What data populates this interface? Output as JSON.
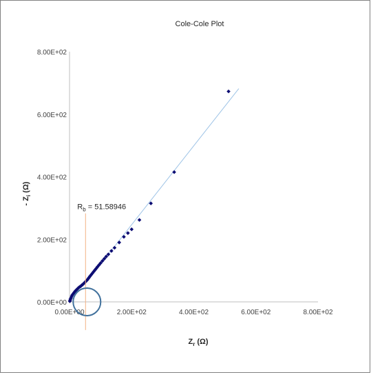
{
  "chart_data": {
    "type": "scatter",
    "title": "Cole-Cole Plot",
    "xlabel": {
      "main": "Z",
      "sub": "r",
      "unit": " (Ω)"
    },
    "ylabel": {
      "main": "- Z",
      "sub": "i",
      "unit": " (Ω)"
    },
    "xlim": [
      0,
      800
    ],
    "ylim": [
      0,
      800
    ],
    "xticks": [
      0,
      200,
      400,
      600,
      800
    ],
    "yticks": [
      0,
      200,
      400,
      600,
      800
    ],
    "xtick_labels": [
      "0.00E+00",
      "2.00E+02",
      "4.00E+02",
      "6.00E+02",
      "8.00E+02"
    ],
    "ytick_labels": [
      "0.00E+00",
      "2.00E+02",
      "4.00E+02",
      "6.00E+02",
      "8.00E+02"
    ],
    "grid": false,
    "series": [
      {
        "marker_color": "#0d0d73",
        "x": [
          1,
          2,
          3,
          5,
          7,
          9,
          12,
          15,
          18,
          21,
          24,
          27,
          30,
          33,
          36,
          39,
          42,
          45,
          48,
          51,
          54,
          57,
          60,
          63,
          66,
          70,
          74,
          78,
          82,
          86,
          90,
          95,
          100,
          106,
          112,
          118,
          125,
          135,
          145,
          160,
          175,
          188,
          200,
          225,
          262,
          337,
          512
        ],
        "y": [
          2,
          5,
          9,
          13,
          18,
          22,
          26,
          30,
          34,
          37,
          40,
          43,
          46,
          48,
          50,
          53,
          55,
          58,
          61,
          64,
          67,
          70,
          74,
          78,
          82,
          87,
          92,
          97,
          102,
          107,
          112,
          118,
          124,
          131,
          138,
          145,
          152,
          163,
          173,
          190,
          208,
          220,
          232,
          262,
          315,
          415,
          673
        ]
      }
    ],
    "fit_line": {
      "color": "#9dc3e6",
      "x": [
        48,
        545
      ],
      "y": [
        55,
        682
      ]
    },
    "annotation": {
      "main": "R",
      "sub": "b",
      "rest": " = 51.58946",
      "x": 51.58946,
      "line_color": "#f4b183"
    },
    "highlight_circle": {
      "x": 51.58946,
      "y": 0,
      "color": "#41719c"
    }
  }
}
